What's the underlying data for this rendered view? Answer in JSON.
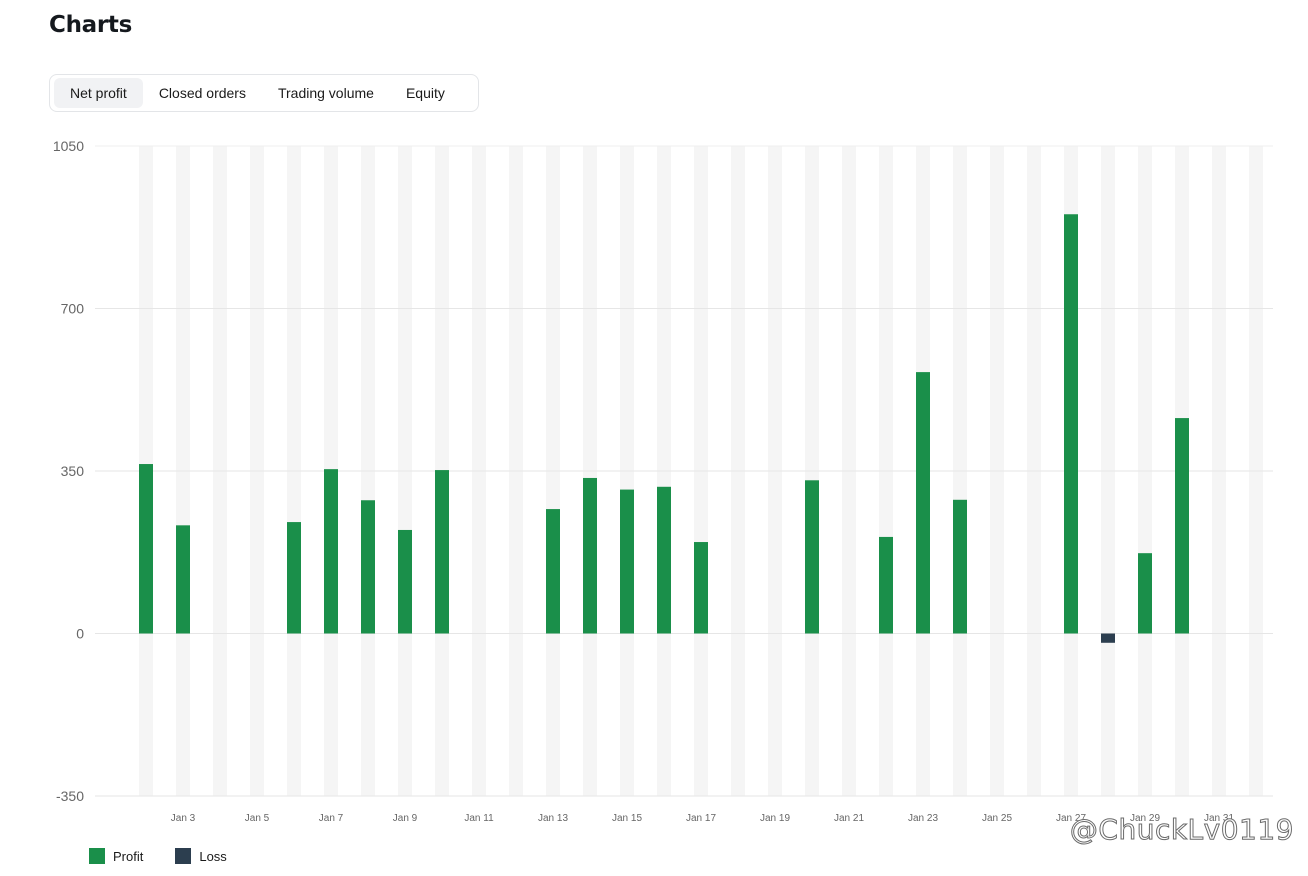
{
  "page": {
    "title": "Charts"
  },
  "tabs": [
    {
      "label": "Net profit",
      "active": true
    },
    {
      "label": "Closed orders",
      "active": false
    },
    {
      "label": "Trading volume",
      "active": false
    },
    {
      "label": "Equity",
      "active": false
    }
  ],
  "colors": {
    "profit": "#1a8f4a",
    "loss": "#2c3e4f",
    "stripe": "#f5f5f5",
    "grid": "#e6e6e6",
    "axis_text": "#666666"
  },
  "legend": [
    {
      "label": "Profit",
      "color": "#1a8f4a"
    },
    {
      "label": "Loss",
      "color": "#2c3e4f"
    }
  ],
  "watermark": "@ChuckLv0119",
  "chart_data": {
    "type": "bar",
    "title": "",
    "xlabel": "",
    "ylabel": "",
    "ylim": [
      -350,
      1050
    ],
    "yticks": [
      -350,
      0,
      350,
      700,
      1050
    ],
    "grid": true,
    "legend_position": "bottom-left",
    "categories": [
      "Jan 2",
      "Jan 3",
      "Jan 4",
      "Jan 5",
      "Jan 6",
      "Jan 7",
      "Jan 8",
      "Jan 9",
      "Jan 10",
      "Jan 11",
      "Jan 12",
      "Jan 13",
      "Jan 14",
      "Jan 15",
      "Jan 16",
      "Jan 17",
      "Jan 18",
      "Jan 19",
      "Jan 20",
      "Jan 21",
      "Jan 22",
      "Jan 23",
      "Jan 24",
      "Jan 25",
      "Jan 26",
      "Jan 27",
      "Jan 28",
      "Jan 29",
      "Jan 30",
      "Jan 31",
      "Feb 1"
    ],
    "tick_labels": [
      "Jan 3",
      "Jan 5",
      "Jan 7",
      "Jan 9",
      "Jan 11",
      "Jan 13",
      "Jan 15",
      "Jan 17",
      "Jan 19",
      "Jan 21",
      "Jan 23",
      "Jan 25",
      "Jan 27",
      "Jan 29",
      "Jan 31"
    ],
    "values": [
      365,
      233,
      0,
      0,
      240,
      354,
      287,
      223,
      352,
      0,
      0,
      268,
      335,
      310,
      316,
      197,
      0,
      0,
      330,
      0,
      208,
      563,
      288,
      0,
      0,
      903,
      -20,
      173,
      464,
      0,
      0
    ],
    "series": [
      {
        "name": "Profit",
        "color": "#1a8f4a"
      },
      {
        "name": "Loss",
        "color": "#2c3e4f"
      }
    ]
  }
}
